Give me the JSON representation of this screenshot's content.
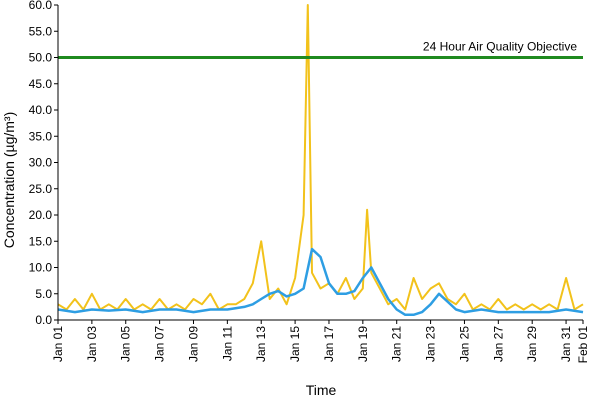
{
  "chart_data": {
    "type": "line",
    "xlabel": "Time",
    "ylabel": "Concentration (µg/m³)",
    "ylim": [
      0,
      60
    ],
    "y_ticks": [
      "0.0",
      "5.0",
      "10.0",
      "15.0",
      "20.0",
      "25.0",
      "30.0",
      "35.0",
      "40.0",
      "45.0",
      "50.0",
      "55.0",
      "60.0"
    ],
    "x_ticks": [
      "Jan 01",
      "Jan 03",
      "Jan 05",
      "Jan 07",
      "Jan 09",
      "Jan 11",
      "Jan 13",
      "Jan 15",
      "Jan 17",
      "Jan 19",
      "Jan 21",
      "Jan 23",
      "Jan 25",
      "Jan 27",
      "Jan 29",
      "Jan 31",
      "Feb 01"
    ],
    "grid": false,
    "objective": {
      "label": "24 Hour Air Quality Objective",
      "value": 50,
      "color": "#1f8a1f"
    },
    "series": [
      {
        "color": "#f2c21b",
        "x": [
          "Jan 01",
          "Jan 01 12:00",
          "Jan 02",
          "Jan 02 12:00",
          "Jan 03",
          "Jan 03 12:00",
          "Jan 04",
          "Jan 04 12:00",
          "Jan 05",
          "Jan 05 12:00",
          "Jan 06",
          "Jan 06 12:00",
          "Jan 07",
          "Jan 07 12:00",
          "Jan 08",
          "Jan 08 12:00",
          "Jan 09",
          "Jan 09 12:00",
          "Jan 10",
          "Jan 10 12:00",
          "Jan 11",
          "Jan 11 12:00",
          "Jan 12",
          "Jan 12 12:00",
          "Jan 13",
          "Jan 13 12:00",
          "Jan 14",
          "Jan 14 12:00",
          "Jan 15",
          "Jan 15 12:00",
          "Jan 15 18:00",
          "Jan 16",
          "Jan 16 12:00",
          "Jan 17",
          "Jan 17 12:00",
          "Jan 18",
          "Jan 18 12:00",
          "Jan 19",
          "Jan 19 06:00",
          "Jan 19 12:00",
          "Jan 20",
          "Jan 20 12:00",
          "Jan 21",
          "Jan 21 12:00",
          "Jan 22",
          "Jan 22 12:00",
          "Jan 23",
          "Jan 23 12:00",
          "Jan 24",
          "Jan 24 12:00",
          "Jan 25",
          "Jan 25 12:00",
          "Jan 26",
          "Jan 26 12:00",
          "Jan 27",
          "Jan 27 12:00",
          "Jan 28",
          "Jan 28 12:00",
          "Jan 29",
          "Jan 29 12:00",
          "Jan 30",
          "Jan 30 12:00",
          "Jan 31",
          "Jan 31 12:00",
          "Feb 01"
        ],
        "y": [
          3,
          2,
          4,
          2,
          5,
          2,
          3,
          2,
          4,
          2,
          3,
          2,
          4,
          2,
          3,
          2,
          4,
          3,
          5,
          2,
          3,
          3,
          4,
          7,
          15,
          4,
          6,
          3,
          8,
          20,
          62,
          9,
          6,
          7,
          5,
          8,
          4,
          6,
          21,
          9,
          6,
          3,
          4,
          2,
          8,
          4,
          6,
          7,
          4,
          3,
          5,
          2,
          3,
          2,
          4,
          2,
          3,
          2,
          3,
          2,
          3,
          2,
          8,
          2,
          3
        ]
      },
      {
        "color": "#2e9ee3",
        "x": [
          "Jan 01",
          "Jan 02",
          "Jan 03",
          "Jan 04",
          "Jan 05",
          "Jan 06",
          "Jan 07",
          "Jan 08",
          "Jan 09",
          "Jan 10",
          "Jan 11",
          "Jan 12",
          "Jan 12 12:00",
          "Jan 13",
          "Jan 13 12:00",
          "Jan 14",
          "Jan 14 12:00",
          "Jan 15",
          "Jan 15 12:00",
          "Jan 16",
          "Jan 16 12:00",
          "Jan 17",
          "Jan 17 12:00",
          "Jan 18",
          "Jan 18 12:00",
          "Jan 19",
          "Jan 19 12:00",
          "Jan 20",
          "Jan 20 12:00",
          "Jan 21",
          "Jan 21 12:00",
          "Jan 22",
          "Jan 22 12:00",
          "Jan 23",
          "Jan 23 12:00",
          "Jan 24",
          "Jan 24 12:00",
          "Jan 25",
          "Jan 26",
          "Jan 27",
          "Jan 28",
          "Jan 29",
          "Jan 30",
          "Jan 31",
          "Feb 01"
        ],
        "y": [
          2,
          1.5,
          2,
          1.8,
          2,
          1.5,
          2,
          2,
          1.5,
          2,
          2,
          2.5,
          3,
          4,
          5,
          5.5,
          4.5,
          5,
          6,
          13.5,
          12,
          7,
          5,
          5,
          5.5,
          8,
          10,
          7,
          4,
          2,
          1,
          1,
          1.5,
          3,
          5,
          3.5,
          2,
          1.5,
          2,
          1.5,
          1.5,
          1.5,
          1.5,
          2,
          1.5
        ]
      }
    ]
  }
}
